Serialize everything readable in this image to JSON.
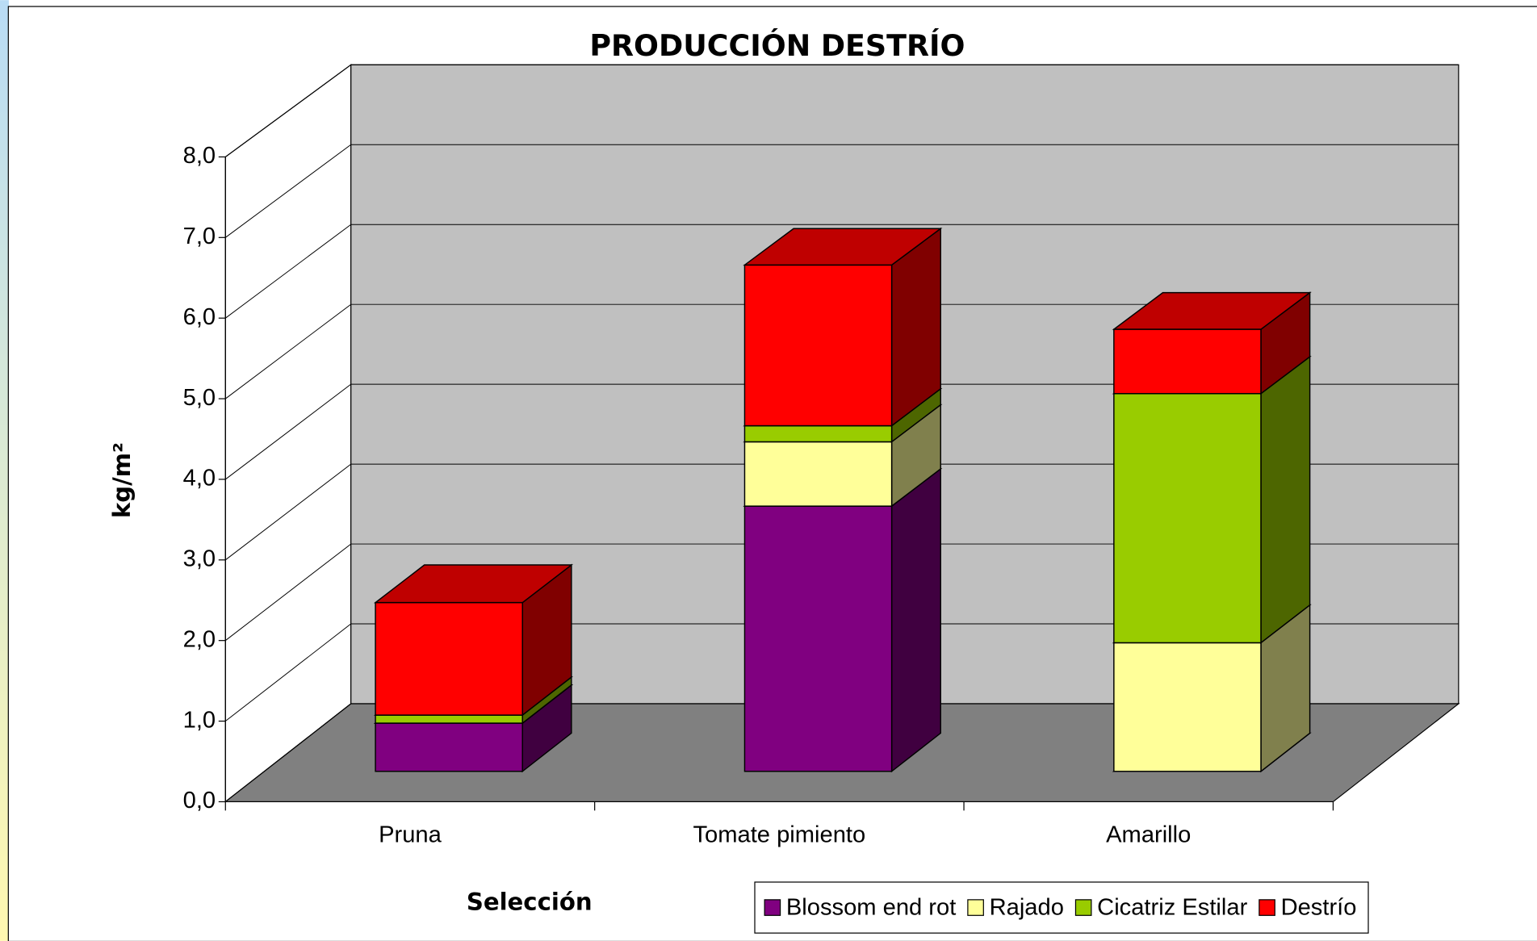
{
  "chart_data": {
    "type": "bar3d_stacked",
    "title": "PRODUCCIÓN DESTRÍO",
    "x_label": "Selección",
    "y_label": "kg/m²",
    "categories": [
      "Pruna",
      "Tomate pimiento",
      "Amarillo"
    ],
    "series": [
      {
        "name": "Blossom end rot",
        "color": "#800080",
        "values": [
          0.6,
          3.3,
          0
        ]
      },
      {
        "name": "Rajado",
        "color": "#ffff99",
        "values": [
          0,
          0.8,
          1.6
        ]
      },
      {
        "name": "Cicatriz Estilar",
        "color": "#99cc00",
        "values": [
          0.1,
          0.2,
          3.1
        ]
      },
      {
        "name": "Destrío",
        "color": "#ff0000",
        "values": [
          1.4,
          2.0,
          0.8
        ]
      }
    ],
    "ylim": [
      0,
      8
    ],
    "yticks": [
      {
        "value": 0,
        "label": "0,0"
      },
      {
        "value": 1,
        "label": "1,0"
      },
      {
        "value": 2,
        "label": "2,0"
      },
      {
        "value": 3,
        "label": "3,0"
      },
      {
        "value": 4,
        "label": "4,0"
      },
      {
        "value": 5,
        "label": "5,0"
      },
      {
        "value": 6,
        "label": "6,0"
      },
      {
        "value": 7,
        "label": "7,0"
      },
      {
        "value": 8,
        "label": "8,0"
      }
    ],
    "grid": true,
    "legend": "bottom-right"
  }
}
